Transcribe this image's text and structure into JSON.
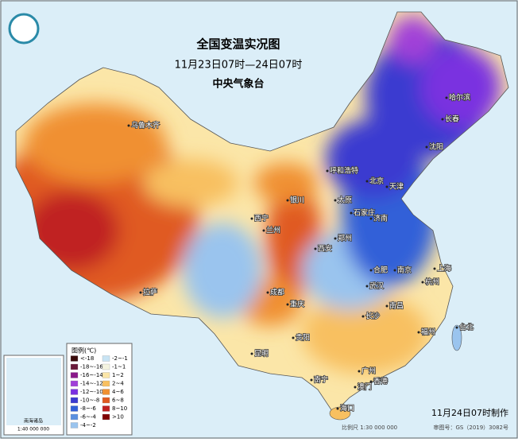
{
  "header": {
    "title": "全国变温实况图",
    "subtitle": "11月23日07时—24日07时",
    "issuer": "中央气象台"
  },
  "legend": {
    "title": "图例(℃)",
    "items": [
      {
        "label": "<-18",
        "color": "#3a0a0a"
      },
      {
        "label": "-18~-16",
        "color": "#6a1a3a"
      },
      {
        "label": "-16~-14",
        "color": "#8a1a8a"
      },
      {
        "label": "-14~-12",
        "color": "#a040d8"
      },
      {
        "label": "-12~-10",
        "color": "#7a30e0"
      },
      {
        "label": "-10~-8",
        "color": "#3a3ad0"
      },
      {
        "label": "-8~-6",
        "color": "#3060d8"
      },
      {
        "label": "-6~-4",
        "color": "#5a90e0"
      },
      {
        "label": "-4~-2",
        "color": "#9ac4ee"
      },
      {
        "label": "-2~-1",
        "color": "#c8e4f4"
      },
      {
        "label": "-1~1",
        "color": "#f4f4e0"
      },
      {
        "label": "1~2",
        "color": "#fbe6a8"
      },
      {
        "label": "2~4",
        "color": "#f8c060"
      },
      {
        "label": "4~6",
        "color": "#f09030"
      },
      {
        "label": "6~8",
        "color": "#e05a20"
      },
      {
        "label": "8~10",
        "color": "#c02020"
      },
      {
        "label": ">10",
        "color": "#800000"
      }
    ]
  },
  "cities": [
    "乌鲁木齐",
    "呼和浩特",
    "银川",
    "西宁",
    "兰州",
    "西安",
    "太原",
    "石家庄",
    "北京",
    "天津",
    "济南",
    "郑州",
    "南京",
    "合肥",
    "上海",
    "杭州",
    "武汉",
    "长沙",
    "南昌",
    "福州",
    "台北",
    "广州",
    "香港",
    "澳门",
    "南宁",
    "海口",
    "贵阳",
    "昆明",
    "成都",
    "重庆",
    "拉萨",
    "哈尔滨",
    "长春",
    "沈阳"
  ],
  "inset": {
    "title": "南海诸岛",
    "scale": "1:40 000 000"
  },
  "footer": {
    "made": "11月24日07时制作",
    "scale": "比例尺 1:30 000 000",
    "map_number": "审图号：GS（2019）3082号"
  }
}
